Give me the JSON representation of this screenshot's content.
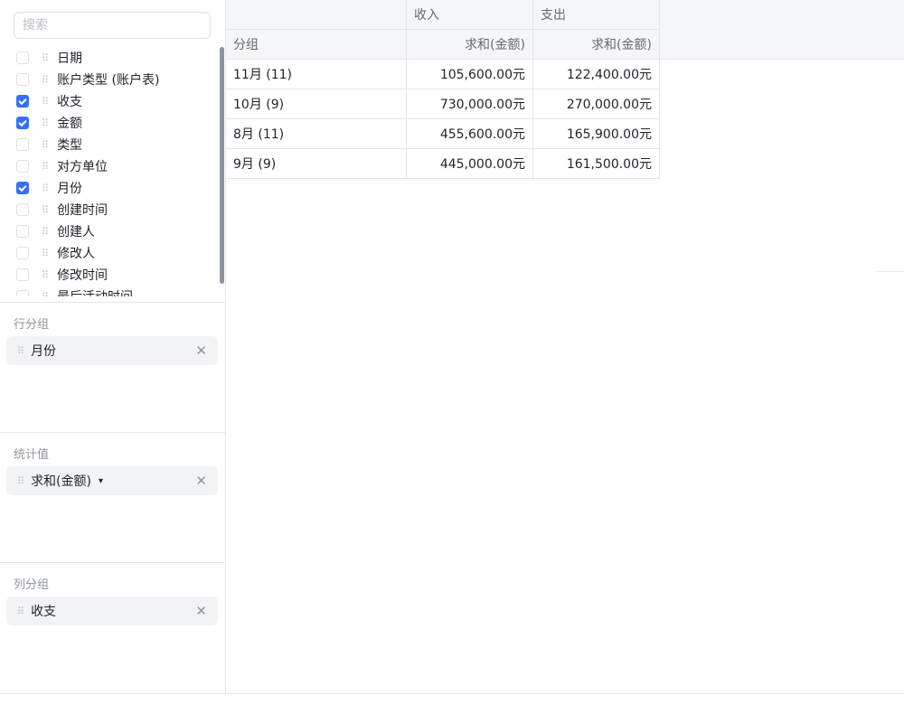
{
  "search": {
    "placeholder": "搜索"
  },
  "fields": [
    {
      "label": "日期",
      "checked": false
    },
    {
      "label": "账户类型 (账户表)",
      "checked": false
    },
    {
      "label": "收支",
      "checked": true
    },
    {
      "label": "金额",
      "checked": true
    },
    {
      "label": "类型",
      "checked": false
    },
    {
      "label": "对方单位",
      "checked": false
    },
    {
      "label": "月份",
      "checked": true
    },
    {
      "label": "创建时间",
      "checked": false
    },
    {
      "label": "创建人",
      "checked": false
    },
    {
      "label": "修改人",
      "checked": false
    },
    {
      "label": "修改时间",
      "checked": false
    },
    {
      "label": "最后活动时间",
      "checked": false
    }
  ],
  "row_group": {
    "title": "行分组",
    "item": "月份"
  },
  "values": {
    "title": "统计值",
    "item": "求和(金额)"
  },
  "col_group": {
    "title": "列分组",
    "item": "收支"
  },
  "table": {
    "col_groups": [
      "",
      "收入",
      "支出"
    ],
    "headers": [
      "分组",
      "求和(金额)",
      "求和(金额)"
    ],
    "rows": [
      [
        "11月 (11)",
        "105,600.00元",
        "122,400.00元"
      ],
      [
        "10月 (9)",
        "730,000.00元",
        "270,000.00元"
      ],
      [
        "8月 (11)",
        "455,600.00元",
        "165,900.00元"
      ],
      [
        "9月 (9)",
        "445,000.00元",
        "161,500.00元"
      ]
    ]
  },
  "colors": {
    "accent": "#3370ff"
  }
}
